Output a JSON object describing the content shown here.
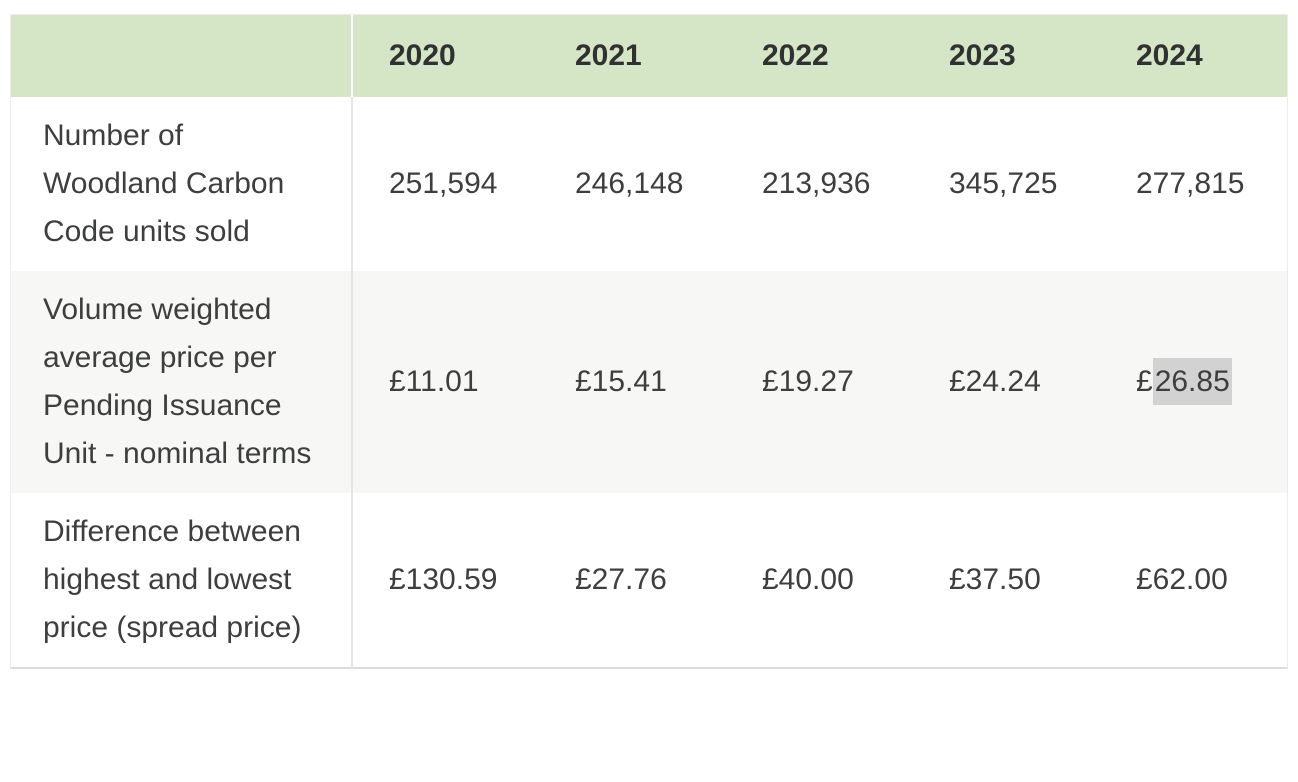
{
  "table": {
    "column_headers": [
      "2020",
      "2021",
      "2022",
      "2023",
      "2024"
    ],
    "rows": [
      {
        "label": "Number of Woodland Carbon Code units sold",
        "values": [
          "251,594",
          "246,148",
          "213,936",
          "345,725",
          "277,815"
        ],
        "striped": false
      },
      {
        "label": "Volume weighted average price per Pending Issuance Unit - nominal terms",
        "values": [
          "£11.01",
          "£15.41",
          "£19.27",
          "£24.24",
          "£26.85"
        ],
        "striped": true,
        "highlight": {
          "col": 4,
          "prefix": "£",
          "selected_text": "26.85"
        }
      },
      {
        "label": "Difference between highest and lowest price (spread price)",
        "values": [
          "£130.59",
          "£27.76",
          "£40.00",
          "£37.50",
          "£62.00"
        ],
        "striped": false
      }
    ],
    "colors": {
      "header_background": "#d5e6c6",
      "stripe_background": "#f7f7f6",
      "text": "#3d3f3e",
      "divider": "#e5e5e5",
      "selection_highlight": "#d2d2d2"
    }
  }
}
